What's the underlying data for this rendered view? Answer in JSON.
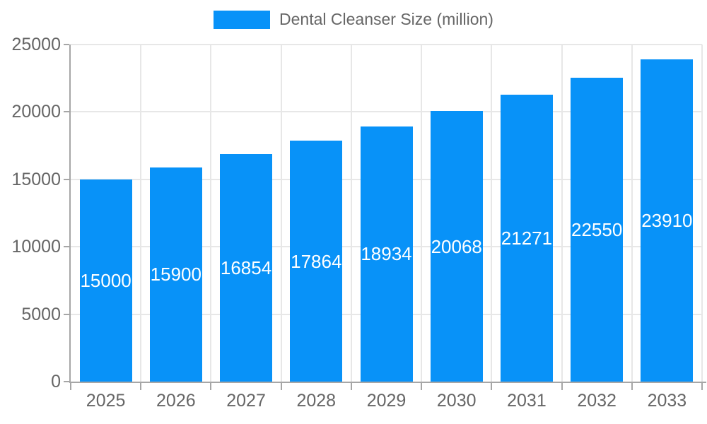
{
  "legend": {
    "label": "Dental Cleanser Size (million)"
  },
  "chart_data": {
    "type": "bar",
    "title": "Dental Cleanser Size (million)",
    "series_name": "Dental Cleanser Size (million)",
    "categories": [
      "2025",
      "2026",
      "2027",
      "2028",
      "2029",
      "2030",
      "2031",
      "2032",
      "2033"
    ],
    "values": [
      15000,
      15900,
      16854,
      17864,
      18934,
      20068,
      21271,
      22550,
      23910
    ],
    "xlabel": "",
    "ylabel": "",
    "ylim": [
      0,
      25000
    ],
    "yticks": [
      0,
      5000,
      10000,
      15000,
      20000,
      25000
    ],
    "grid": true,
    "legend_position": "top-center",
    "data_labels": true,
    "colors": {
      "bar": "#0892f8",
      "bar_label_text": "#ffffff",
      "axis_text": "#666666",
      "grid_line": "#e7e7e7",
      "axis_line": "#a6a6a6",
      "background": "#ffffff"
    }
  }
}
